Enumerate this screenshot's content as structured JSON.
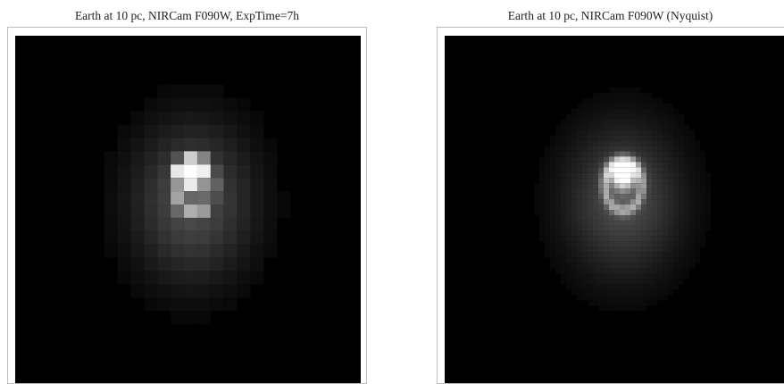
{
  "panels": [
    {
      "title": "Earth at 10 pc, NIRCam F090W, ExpTime=7h"
    },
    {
      "title": "Earth at 10 pc, NIRCam F090W (Nyquist)"
    }
  ],
  "colors": {
    "background": "#000000",
    "frame": "#bdbdbd"
  }
}
